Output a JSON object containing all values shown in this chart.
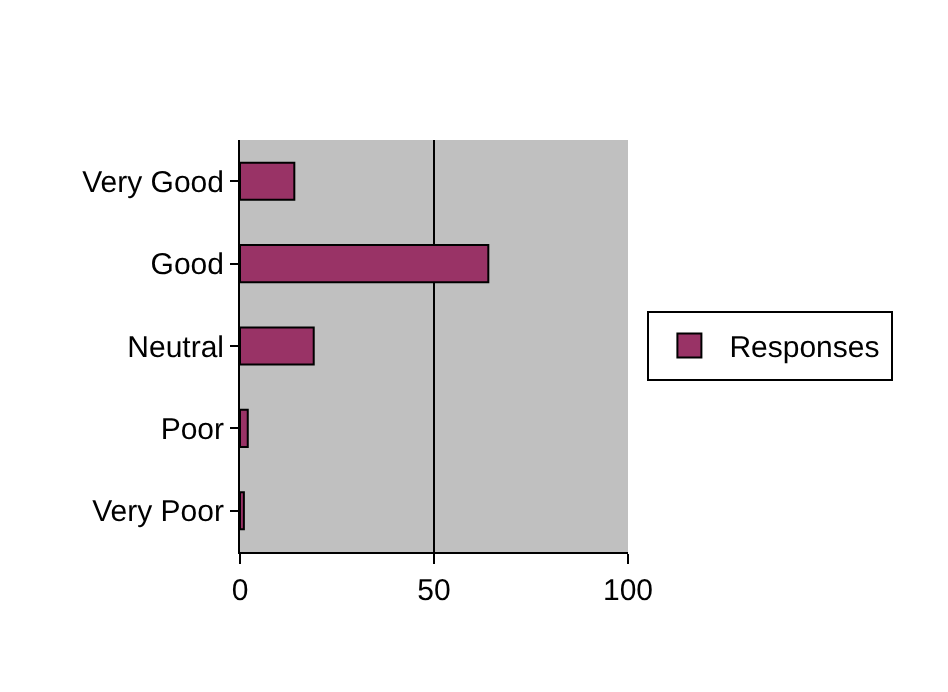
{
  "chart_data": {
    "type": "bar",
    "orientation": "horizontal",
    "categories": [
      "Very Good",
      "Good",
      "Neutral",
      "Poor",
      "Very Poor"
    ],
    "series": [
      {
        "name": "Responses",
        "color": "#993366",
        "values": [
          14,
          64,
          19,
          2,
          1
        ]
      }
    ],
    "xlim": [
      0,
      100
    ],
    "xticks": [
      0,
      50,
      100
    ],
    "grid": "x",
    "legend": "right"
  }
}
